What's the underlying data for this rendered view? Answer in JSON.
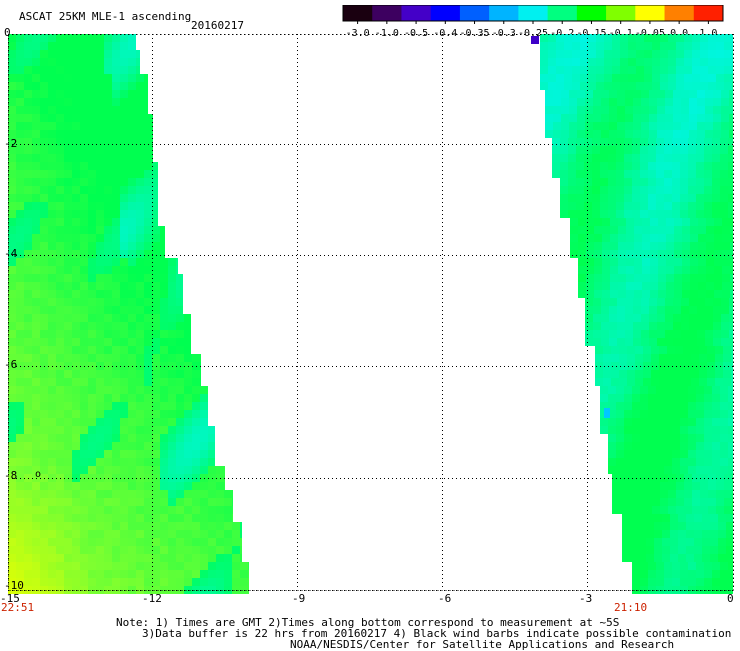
{
  "header": {
    "title": "ASCAT 25KM MLE-1 ascending",
    "date": "20160217"
  },
  "colorbar": {
    "labels": [
      "-3.0",
      "-1.0",
      "-0.5",
      "-0.4",
      "-0.35",
      "-0.3",
      "-0.25",
      "-0.2",
      "-0.15",
      "-0.1",
      "-0.05",
      "0.0",
      "1.0"
    ],
    "colors": [
      "#1a0010",
      "#3d0060",
      "#4400c8",
      "#0000ff",
      "#0060ff",
      "#00b4ff",
      "#00f0f0",
      "#00ff80",
      "#00ff00",
      "#80ff00",
      "#ffff00",
      "#ff8000",
      "#ff2000"
    ]
  },
  "map": {
    "x_ticks": [
      "-15",
      "-12",
      "-9",
      "-6",
      "-3",
      "0"
    ],
    "y_ticks": [
      "0",
      "-2",
      "-4",
      "-6",
      "-8",
      "-10"
    ],
    "time_left": "22:51",
    "time_right": "21:10",
    "marker": "o",
    "colors": {
      "cyan": "#00f5e6",
      "green": "#00ff50",
      "yellowgreen": "#9cff28",
      "yellow": "#e6ff00",
      "outlier": "#3d00c8"
    }
  },
  "footer": {
    "line1": "Note: 1) Times are GMT 2)Times along bottom correspond to measurement at ~5S",
    "line2": "3)Data buffer is 22 hrs from 20160217 4) Black wind barbs indicate possible contamination",
    "line3": "NOAA/NESDIS/Center for Satellite Applications and Research"
  }
}
